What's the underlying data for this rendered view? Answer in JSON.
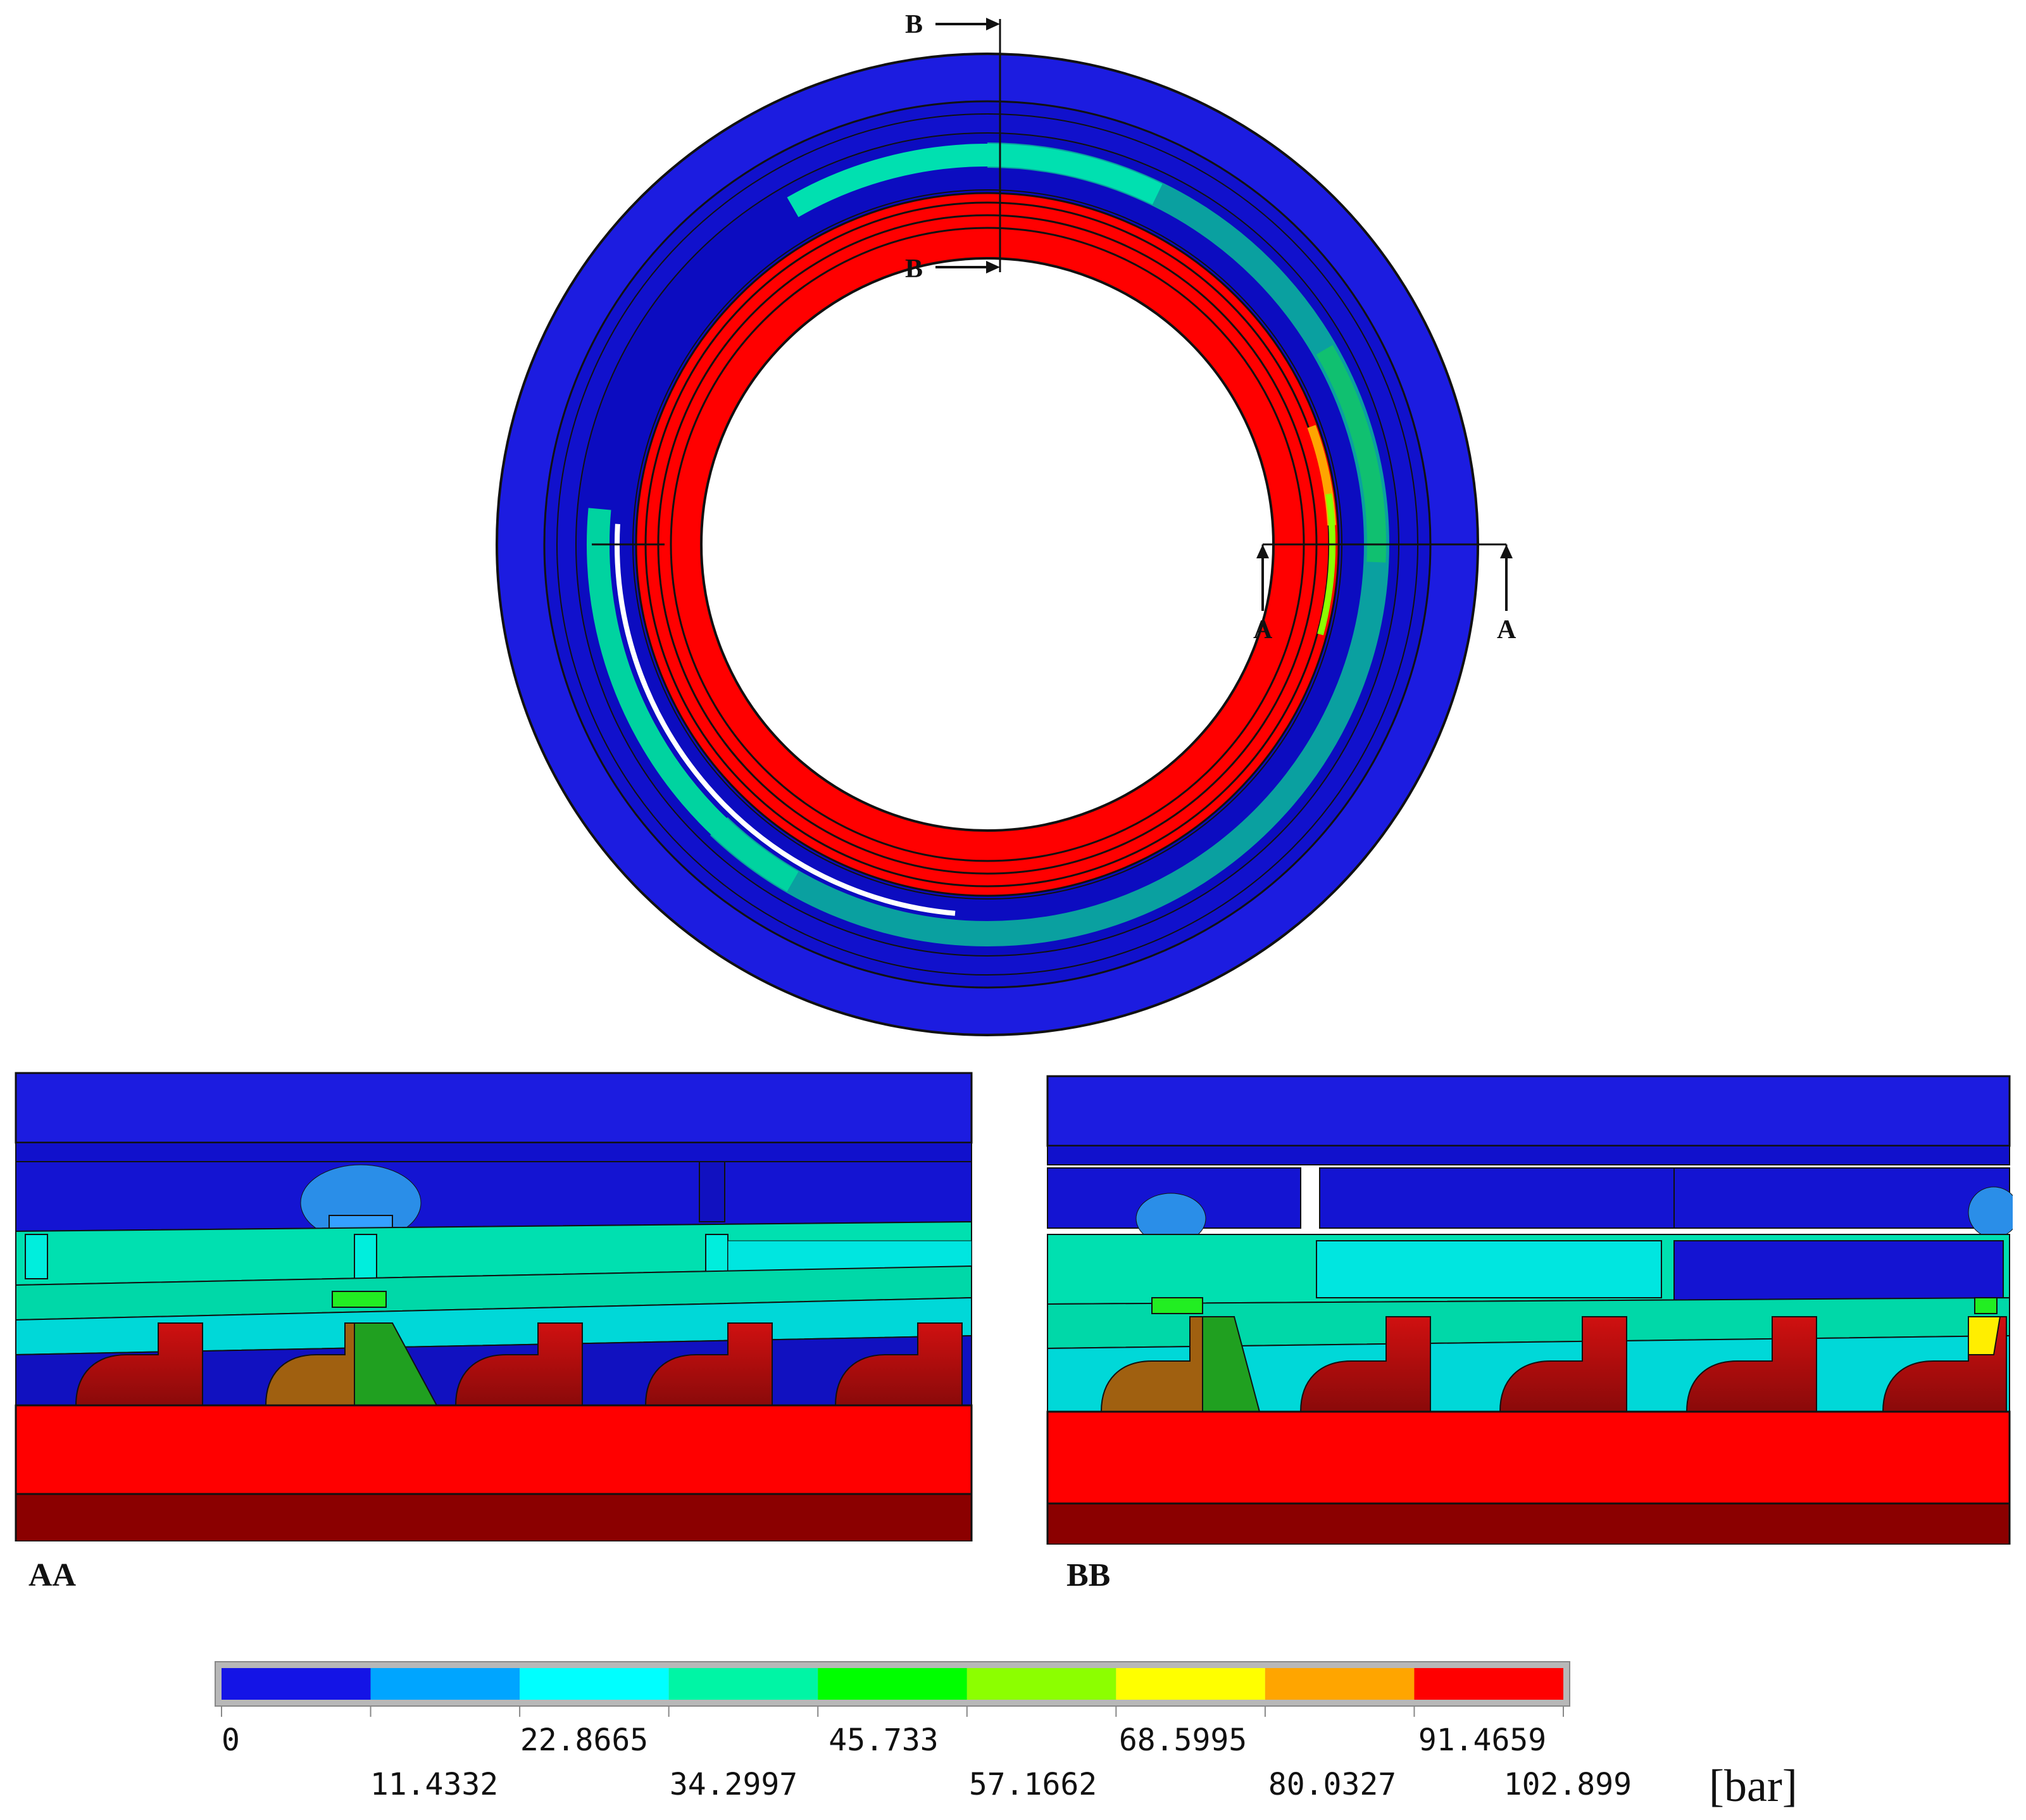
{
  "section_labels": {
    "top_marker_b": "B",
    "bottom_marker_b": "B",
    "marker_a_left": "A",
    "marker_a_right": "A"
  },
  "views": {
    "view_aa": "AA",
    "view_bb": "BB"
  },
  "legend": {
    "unit": "[bar]",
    "ticks_top": [
      "0",
      "22.8665",
      "45.733",
      "68.5995",
      "91.4659"
    ],
    "ticks_bottom": [
      "11.4332",
      "34.2997",
      "57.1662",
      "80.0327",
      "102.899"
    ],
    "colors": [
      "#1414e6",
      "#00a5ff",
      "#00ffff",
      "#00f5a5",
      "#00ff00",
      "#8cff00",
      "#ffff00",
      "#ffa500",
      "#ff0000"
    ]
  }
}
